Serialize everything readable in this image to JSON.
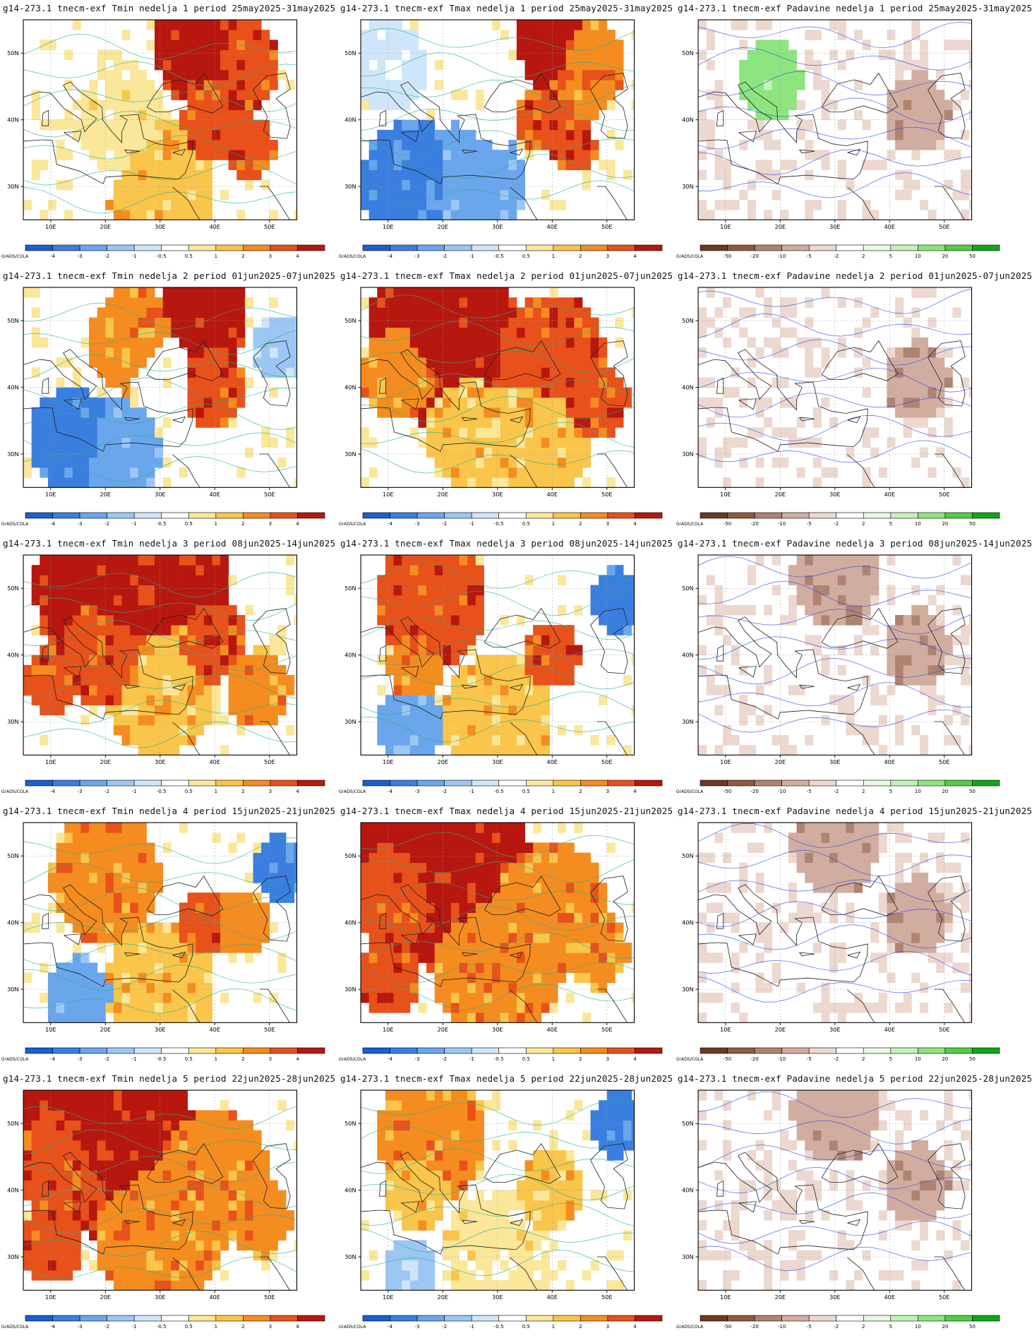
{
  "colorbar_credit": "GrADS/COLA",
  "map_axes": {
    "x_ticks": [
      "10E",
      "20E",
      "30E",
      "40E",
      "50E"
    ],
    "x_tick_values": [
      10,
      20,
      30,
      40,
      50
    ],
    "y_ticks": [
      "30N",
      "40N",
      "50N"
    ],
    "y_tick_values": [
      30,
      40,
      50
    ],
    "lon_range": [
      5,
      55
    ],
    "lat_range": [
      25,
      55
    ]
  },
  "scales": {
    "temperature": {
      "labels": [
        "-4",
        "-3",
        "-2",
        "-1",
        "-0.5",
        "0.5",
        "1",
        "2",
        "3",
        "4"
      ],
      "colors": [
        "#1a5fd0",
        "#3a7ee0",
        "#6aa6ec",
        "#9cc7f4",
        "#cfe6fa",
        "#ffffff",
        "#fbe79a",
        "#f9c54a",
        "#f58c1f",
        "#e8511a",
        "#b7170e"
      ]
    },
    "precip": {
      "labels": [
        "-50",
        "-20",
        "-10",
        "-5",
        "-2",
        "2",
        "5",
        "10",
        "20",
        "50"
      ],
      "colors": [
        "#6b3a22",
        "#8f5a3d",
        "#b08370",
        "#d1ada0",
        "#ecd8cf",
        "#ffffff",
        "#e8f9e4",
        "#c2f2b8",
        "#8ee47f",
        "#4fcf42",
        "#10a61a"
      ]
    }
  },
  "panels": [
    {
      "title": "g14-273.1 tnecm-exf Tmin nedelja 1 period 25may2025-31may2025",
      "kind": "temperature",
      "variable": "Tmin",
      "week": 1,
      "period": "25may2025-31may2025"
    },
    {
      "title": "g14-273.1 tnecm-exf Tmax nedelja 1 period 25may2025-31may2025",
      "kind": "temperature",
      "variable": "Tmax",
      "week": 1,
      "period": "25may2025-31may2025"
    },
    {
      "title": "g14-273.1 tnecm-exf Padavine nedelja 1 period 25may2025-31may2025",
      "kind": "precip",
      "variable": "Padavine",
      "week": 1,
      "period": "25may2025-31may2025"
    },
    {
      "title": "g14-273.1 tnecm-exf Tmin nedelja 2 period 01jun2025-07jun2025",
      "kind": "temperature",
      "variable": "Tmin",
      "week": 2,
      "period": "01jun2025-07jun2025"
    },
    {
      "title": "g14-273.1 tnecm-exf Tmax nedelja 2 period 01jun2025-07jun2025",
      "kind": "temperature",
      "variable": "Tmax",
      "week": 2,
      "period": "01jun2025-07jun2025"
    },
    {
      "title": "g14-273.1 tnecm-exf Padavine nedelja 2 period 01jun2025-07jun2025",
      "kind": "precip",
      "variable": "Padavine",
      "week": 2,
      "period": "01jun2025-07jun2025"
    },
    {
      "title": "g14-273.1 tnecm-exf Tmin nedelja 3 period 08jun2025-14jun2025",
      "kind": "temperature",
      "variable": "Tmin",
      "week": 3,
      "period": "08jun2025-14jun2025"
    },
    {
      "title": "g14-273.1 tnecm-exf Tmax nedelja 3 period 08jun2025-14jun2025",
      "kind": "temperature",
      "variable": "Tmax",
      "week": 3,
      "period": "08jun2025-14jun2025"
    },
    {
      "title": "g14-273.1 tnecm-exf Padavine nedelja 3 period 08jun2025-14jun2025",
      "kind": "precip",
      "variable": "Padavine",
      "week": 3,
      "period": "08jun2025-14jun2025"
    },
    {
      "title": "g14-273.1 tnecm-exf Tmin nedelja 4 period 15jun2025-21jun2025",
      "kind": "temperature",
      "variable": "Tmin",
      "week": 4,
      "period": "15jun2025-21jun2025"
    },
    {
      "title": "g14-273.1 tnecm-exf Tmax nedelja 4 period 15jun2025-21jun2025",
      "kind": "temperature",
      "variable": "Tmax",
      "week": 4,
      "period": "15jun2025-21jun2025"
    },
    {
      "title": "g14-273.1 tnecm-exf Padavine nedelja 4 period 15jun2025-21jun2025",
      "kind": "precip",
      "variable": "Padavine",
      "week": 4,
      "period": "15jun2025-21jun2025"
    },
    {
      "title": "g14-273.1 tnecm-exf Tmin nedelja 5 period 22jun2025-28jun2025",
      "kind": "temperature",
      "variable": "Tmin",
      "week": 5,
      "period": "22jun2025-28jun2025"
    },
    {
      "title": "g14-273.1 tnecm-exf Tmax nedelja 5 period 22jun2025-28jun2025",
      "kind": "temperature",
      "variable": "Tmax",
      "week": 5,
      "period": "22jun2025-28jun2025"
    },
    {
      "title": "g14-273.1 tnecm-exf Padavine nedelja 5 period 22jun2025-28jun2025",
      "kind": "precip",
      "variable": "Padavine",
      "week": 5,
      "period": "22jun2025-28jun2025"
    }
  ]
}
